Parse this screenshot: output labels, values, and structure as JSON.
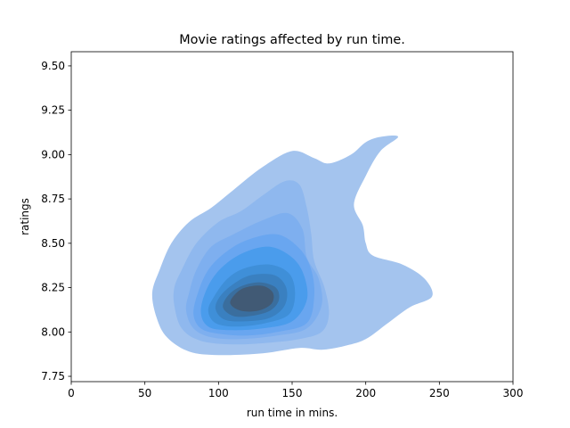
{
  "chart_data": {
    "type": "kde",
    "title": "Movie ratings affected by run time.",
    "xlabel": "run time in mins.",
    "ylabel": "ratings",
    "xlim": [
      0,
      300
    ],
    "ylim": [
      7.72,
      9.58
    ],
    "xticks": [
      0,
      50,
      100,
      150,
      200,
      250,
      300
    ],
    "yticks": [
      7.75,
      8.0,
      8.25,
      8.5,
      8.75,
      9.0,
      9.25,
      9.5
    ],
    "xtick_labels": [
      "0",
      "50",
      "100",
      "150",
      "200",
      "250",
      "300"
    ],
    "ytick_labels": [
      "7.75",
      "8.00",
      "8.25",
      "8.50",
      "8.75",
      "9.00",
      "9.25",
      "9.50"
    ],
    "grid": false,
    "levels": [
      {
        "color": "#a4c4ee",
        "points": [
          [
            55,
            8.22
          ],
          [
            58,
            8.08
          ],
          [
            65,
            7.97
          ],
          [
            80,
            7.89
          ],
          [
            100,
            7.87
          ],
          [
            130,
            7.88
          ],
          [
            155,
            7.91
          ],
          [
            170,
            7.9
          ],
          [
            185,
            7.92
          ],
          [
            200,
            7.96
          ],
          [
            215,
            8.05
          ],
          [
            230,
            8.14
          ],
          [
            245,
            8.2
          ],
          [
            240,
            8.3
          ],
          [
            225,
            8.38
          ],
          [
            205,
            8.43
          ],
          [
            200,
            8.5
          ],
          [
            198,
            8.6
          ],
          [
            192,
            8.72
          ],
          [
            200,
            8.88
          ],
          [
            210,
            9.02
          ],
          [
            222,
            9.1
          ],
          [
            210,
            9.1
          ],
          [
            200,
            9.07
          ],
          [
            190,
            9.0
          ],
          [
            175,
            8.95
          ],
          [
            165,
            8.98
          ],
          [
            150,
            9.02
          ],
          [
            130,
            8.93
          ],
          [
            110,
            8.8
          ],
          [
            95,
            8.7
          ],
          [
            80,
            8.62
          ],
          [
            68,
            8.5
          ],
          [
            60,
            8.35
          ]
        ]
      },
      {
        "color": "#8fb8ee",
        "points": [
          [
            70,
            8.15
          ],
          [
            75,
            8.02
          ],
          [
            88,
            7.95
          ],
          [
            110,
            7.93
          ],
          [
            135,
            7.94
          ],
          [
            155,
            7.96
          ],
          [
            170,
            8.0
          ],
          [
            175,
            8.1
          ],
          [
            172,
            8.25
          ],
          [
            165,
            8.4
          ],
          [
            163,
            8.55
          ],
          [
            160,
            8.7
          ],
          [
            155,
            8.83
          ],
          [
            145,
            8.85
          ],
          [
            130,
            8.77
          ],
          [
            115,
            8.68
          ],
          [
            100,
            8.62
          ],
          [
            85,
            8.5
          ],
          [
            75,
            8.35
          ],
          [
            70,
            8.25
          ]
        ]
      },
      {
        "color": "#7eafef",
        "points": [
          [
            78,
            8.12
          ],
          [
            83,
            8.02
          ],
          [
            95,
            7.97
          ],
          [
            115,
            7.96
          ],
          [
            140,
            7.98
          ],
          [
            160,
            8.02
          ],
          [
            170,
            8.15
          ],
          [
            168,
            8.3
          ],
          [
            160,
            8.42
          ],
          [
            157,
            8.58
          ],
          [
            147,
            8.67
          ],
          [
            130,
            8.63
          ],
          [
            110,
            8.55
          ],
          [
            95,
            8.48
          ],
          [
            85,
            8.35
          ],
          [
            80,
            8.22
          ]
        ]
      },
      {
        "color": "#69a6f0",
        "points": [
          [
            83,
            8.1
          ],
          [
            88,
            8.02
          ],
          [
            100,
            7.99
          ],
          [
            120,
            7.98
          ],
          [
            140,
            8.0
          ],
          [
            160,
            8.05
          ],
          [
            165,
            8.2
          ],
          [
            163,
            8.35
          ],
          [
            155,
            8.47
          ],
          [
            140,
            8.55
          ],
          [
            120,
            8.52
          ],
          [
            105,
            8.45
          ],
          [
            93,
            8.35
          ],
          [
            86,
            8.22
          ]
        ]
      },
      {
        "color": "#4a9cec",
        "points": [
          [
            88,
            8.12
          ],
          [
            93,
            8.03
          ],
          [
            108,
            8.01
          ],
          [
            130,
            8.02
          ],
          [
            150,
            8.06
          ],
          [
            160,
            8.18
          ],
          [
            158,
            8.32
          ],
          [
            150,
            8.42
          ],
          [
            135,
            8.48
          ],
          [
            118,
            8.45
          ],
          [
            103,
            8.37
          ],
          [
            93,
            8.26
          ]
        ]
      },
      {
        "color": "#3f8fd8",
        "points": [
          [
            93,
            8.12
          ],
          [
            98,
            8.05
          ],
          [
            112,
            8.03
          ],
          [
            132,
            8.05
          ],
          [
            148,
            8.1
          ],
          [
            152,
            8.22
          ],
          [
            148,
            8.33
          ],
          [
            135,
            8.38
          ],
          [
            118,
            8.36
          ],
          [
            106,
            8.3
          ],
          [
            97,
            8.2
          ]
        ]
      },
      {
        "color": "#3a80c0",
        "points": [
          [
            98,
            8.13
          ],
          [
            104,
            8.07
          ],
          [
            118,
            8.06
          ],
          [
            135,
            8.08
          ],
          [
            145,
            8.15
          ],
          [
            146,
            8.25
          ],
          [
            138,
            8.32
          ],
          [
            122,
            8.32
          ],
          [
            110,
            8.27
          ],
          [
            101,
            8.2
          ]
        ]
      },
      {
        "color": "#3a6e9e",
        "points": [
          [
            103,
            8.14
          ],
          [
            110,
            8.09
          ],
          [
            122,
            8.09
          ],
          [
            135,
            8.12
          ],
          [
            141,
            8.18
          ],
          [
            139,
            8.25
          ],
          [
            128,
            8.28
          ],
          [
            116,
            8.26
          ],
          [
            107,
            8.21
          ]
        ]
      },
      {
        "color": "#415a75",
        "points": [
          [
            108,
            8.16
          ],
          [
            115,
            8.12
          ],
          [
            127,
            8.12
          ],
          [
            136,
            8.16
          ],
          [
            137,
            8.22
          ],
          [
            130,
            8.26
          ],
          [
            118,
            8.25
          ],
          [
            111,
            8.21
          ]
        ]
      }
    ]
  }
}
